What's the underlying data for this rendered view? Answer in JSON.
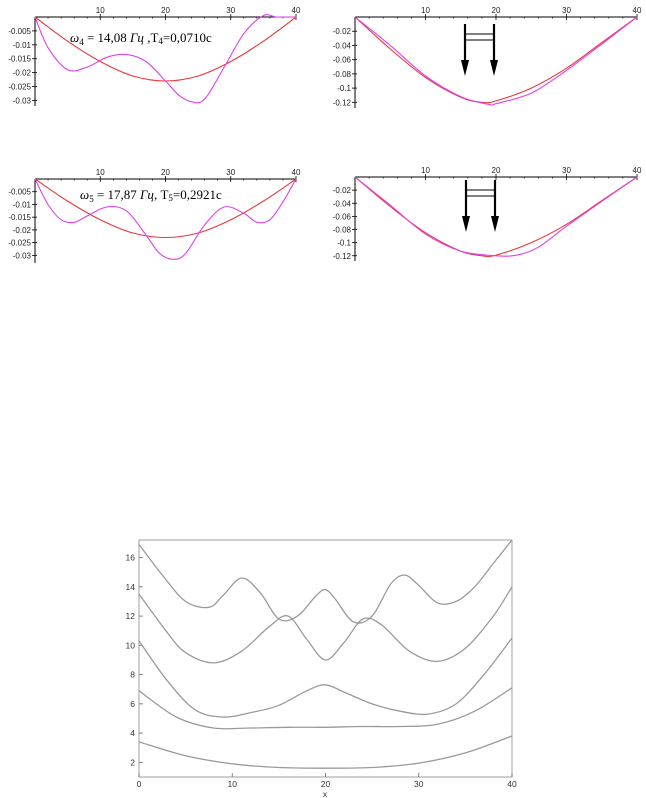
{
  "chart_data": [
    {
      "type": "line",
      "xlim": [
        0,
        40
      ],
      "ylim": [
        -0.032,
        0
      ],
      "xticks": [
        10,
        20,
        30,
        40
      ],
      "yticks": [
        -0.005,
        -0.01,
        -0.015,
        -0.02,
        -0.025,
        -0.03
      ],
      "ytick_labels": [
        "-0.005",
        "-0.01",
        "-0.015",
        "-0.02",
        "-0.025",
        "-0.03"
      ],
      "annotation": {
        "omega": "ω",
        "omega_sub": "4",
        "eq": " = 14,08 ",
        "unit": "Гц",
        "sep": " ,T",
        "t_sub": "4",
        "t_val": "=0,0710c"
      },
      "series": [
        {
          "color": "#e8383a",
          "x": [
            0,
            5,
            10,
            15,
            20,
            25,
            30,
            35,
            40
          ],
          "y": [
            0,
            -0.0087,
            -0.016,
            -0.0212,
            -0.023,
            -0.0212,
            -0.016,
            -0.0087,
            0
          ]
        },
        {
          "color": "#e040e8",
          "x": [
            0,
            2,
            5,
            8,
            11,
            14,
            17,
            20,
            22,
            24,
            26,
            29,
            32,
            35,
            37,
            40
          ],
          "y": [
            0,
            -0.011,
            -0.019,
            -0.018,
            -0.0145,
            -0.0135,
            -0.016,
            -0.023,
            -0.028,
            -0.0305,
            -0.0295,
            -0.018,
            -0.006,
            0.0005,
            0,
            0
          ]
        }
      ]
    },
    {
      "type": "line",
      "xlim": [
        0,
        40
      ],
      "ylim": [
        -0.128,
        0
      ],
      "xticks": [
        10,
        20,
        30,
        40
      ],
      "yticks": [
        -0.02,
        -0.04,
        -0.06,
        -0.08,
        -0.1,
        -0.12
      ],
      "ytick_labels": [
        "-0.02",
        "-0.04",
        "-0.06",
        "-0.08",
        "-0.1",
        "-0.12"
      ],
      "series": [
        {
          "color": "#e8383a",
          "x": [
            0,
            5,
            10,
            15,
            18,
            20,
            25,
            30,
            35,
            40
          ],
          "y": [
            0,
            -0.045,
            -0.085,
            -0.113,
            -0.12,
            -0.118,
            -0.1,
            -0.072,
            -0.036,
            0
          ]
        },
        {
          "color": "#e040e8",
          "x": [
            0,
            5,
            10,
            15,
            19,
            20,
            25,
            30,
            35,
            40
          ],
          "y": [
            0,
            -0.04,
            -0.083,
            -0.112,
            -0.123,
            -0.122,
            -0.107,
            -0.075,
            -0.038,
            0
          ]
        }
      ]
    },
    {
      "type": "line",
      "xlim": [
        0,
        40
      ],
      "ylim": [
        -0.033,
        0
      ],
      "xticks": [
        10,
        20,
        30,
        40
      ],
      "yticks": [
        -0.005,
        -0.01,
        -0.015,
        -0.02,
        -0.025,
        -0.03
      ],
      "ytick_labels": [
        "-0.005",
        "-0.01",
        "-0.015",
        "-0.02",
        "-0.025",
        "-0.03"
      ],
      "annotation": {
        "omega": "ω",
        "omega_sub": "5",
        "eq": " = 17,87 ",
        "unit": "Гц",
        "sep": ", T",
        "t_sub": "5",
        "t_val": "=0,2921c"
      },
      "series": [
        {
          "color": "#e8383a",
          "x": [
            0,
            5,
            10,
            15,
            20,
            25,
            30,
            35,
            40
          ],
          "y": [
            0,
            -0.0087,
            -0.016,
            -0.0212,
            -0.023,
            -0.0212,
            -0.016,
            -0.0087,
            0
          ]
        },
        {
          "color": "#e040e8",
          "x": [
            0,
            2,
            4,
            6,
            8,
            11,
            14,
            17,
            19,
            21,
            23,
            26,
            29,
            32,
            34,
            36,
            38,
            40
          ],
          "y": [
            0,
            -0.01,
            -0.016,
            -0.017,
            -0.0145,
            -0.011,
            -0.0125,
            -0.022,
            -0.029,
            -0.0315,
            -0.0295,
            -0.018,
            -0.011,
            -0.0135,
            -0.017,
            -0.016,
            -0.009,
            0
          ]
        }
      ]
    },
    {
      "type": "line",
      "xlim": [
        0,
        40
      ],
      "ylim": [
        -0.128,
        0
      ],
      "xticks": [
        10,
        20,
        30,
        40
      ],
      "yticks": [
        -0.02,
        -0.04,
        -0.06,
        -0.08,
        -0.1,
        -0.12
      ],
      "ytick_labels": [
        "-0.02",
        "-0.04",
        "-0.06",
        "-0.08",
        "-0.1",
        "-0.12"
      ],
      "series": [
        {
          "color": "#e8383a",
          "x": [
            0,
            5,
            10,
            15,
            18,
            20,
            25,
            30,
            35,
            40
          ],
          "y": [
            0,
            -0.045,
            -0.085,
            -0.113,
            -0.12,
            -0.119,
            -0.1,
            -0.072,
            -0.036,
            0
          ]
        },
        {
          "color": "#e040e8",
          "x": [
            0,
            5,
            10,
            15,
            20,
            23,
            26,
            30,
            35,
            40
          ],
          "y": [
            0,
            -0.043,
            -0.087,
            -0.113,
            -0.12,
            -0.119,
            -0.107,
            -0.075,
            -0.037,
            0
          ]
        }
      ]
    },
    {
      "type": "line",
      "xlim": [
        0,
        40
      ],
      "ylim": [
        1,
        17.2
      ],
      "xticks": [
        0,
        10,
        20,
        30,
        40
      ],
      "yticks": [
        2,
        4,
        6,
        8,
        10,
        12,
        14,
        16
      ],
      "xlabel": "x",
      "series": [
        {
          "color": "#9a9a9a",
          "x": [
            0,
            5,
            10,
            15,
            20,
            25,
            30,
            35,
            40
          ],
          "y": [
            3.4,
            2.45,
            1.9,
            1.65,
            1.6,
            1.65,
            1.95,
            2.65,
            3.8
          ]
        },
        {
          "color": "#9a9a9a",
          "x": [
            0,
            4,
            8,
            12,
            16,
            20,
            24,
            28,
            32,
            36,
            40
          ],
          "y": [
            6.9,
            5.1,
            4.35,
            4.35,
            4.4,
            4.4,
            4.45,
            4.45,
            4.6,
            5.5,
            7.1
          ]
        },
        {
          "color": "#9a9a9a",
          "x": [
            0,
            3,
            6,
            9,
            12,
            15,
            18,
            20,
            22,
            25,
            28,
            31,
            34,
            37,
            40
          ],
          "y": [
            10.3,
            7.6,
            5.6,
            5.1,
            5.4,
            5.9,
            6.9,
            7.3,
            6.8,
            6.0,
            5.5,
            5.3,
            6.0,
            8.0,
            10.5
          ]
        },
        {
          "color": "#9a9a9a",
          "x": [
            0,
            3,
            5,
            8,
            11,
            14,
            16,
            18,
            20,
            22,
            24,
            26,
            29,
            32,
            35,
            38,
            40
          ],
          "y": [
            13.5,
            10.9,
            9.5,
            8.8,
            9.6,
            11.3,
            12.0,
            10.4,
            9.0,
            10.2,
            11.8,
            11.4,
            9.6,
            8.9,
            9.8,
            12.0,
            14.0
          ]
        },
        {
          "color": "#9a9a9a",
          "x": [
            0,
            2.5,
            5,
            7.5,
            9,
            11,
            13,
            15,
            17,
            19,
            20,
            21,
            23,
            25,
            27,
            28.5,
            30,
            32,
            34,
            36,
            38,
            40
          ],
          "y": [
            16.9,
            14.8,
            13.0,
            12.6,
            13.4,
            14.6,
            13.6,
            11.8,
            12.0,
            13.4,
            13.8,
            13.2,
            11.6,
            12.0,
            14.2,
            14.8,
            14.1,
            12.9,
            13.0,
            14.0,
            15.6,
            17.2
          ]
        }
      ]
    }
  ]
}
